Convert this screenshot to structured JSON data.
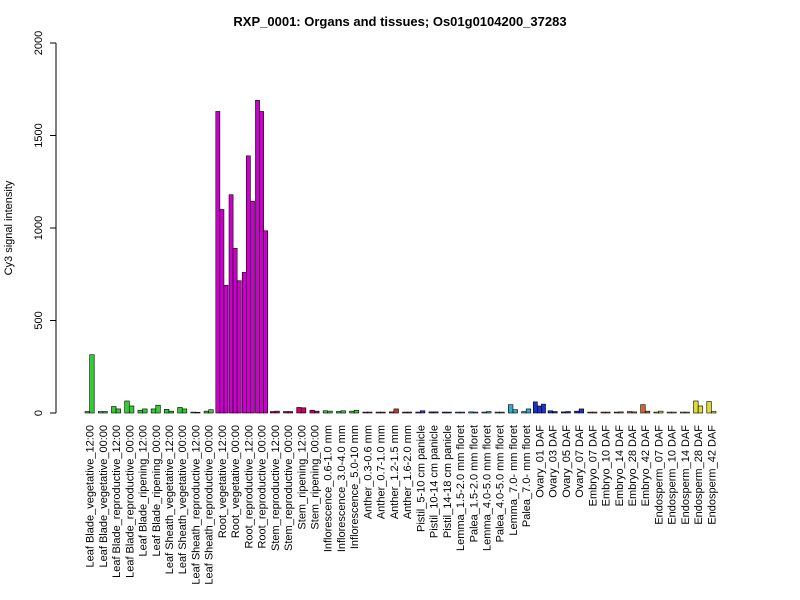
{
  "chart_data": {
    "type": "bar",
    "title": "RXP_0001: Organs and tissues; Os01g0104200_37283",
    "ylabel": "Cy3 signal intensity",
    "xlabel": "",
    "ylim": [
      0,
      2000
    ],
    "yticks": [
      0,
      500,
      1000,
      1500,
      2000
    ],
    "ytick_labels": [
      "0",
      "500",
      "1000",
      "1500",
      "2000"
    ],
    "grid": false,
    "groups": [
      {
        "label": "Leaf Blade_vegetative_12:00",
        "color": "#33cc33",
        "values": [
          8,
          315
        ]
      },
      {
        "label": "Leaf Blade_vegetative_00:00",
        "color": "#33cc33",
        "values": [
          8,
          8
        ]
      },
      {
        "label": "Leaf Blade_reproductive_12:00",
        "color": "#33cc33",
        "values": [
          35,
          22
        ]
      },
      {
        "label": "Leaf Blade_reproductive_00:00",
        "color": "#33cc33",
        "values": [
          65,
          38
        ]
      },
      {
        "label": "Leaf Blade_ripening_12:00",
        "color": "#33cc33",
        "values": [
          15,
          22
        ]
      },
      {
        "label": "Leaf Blade_ripening_00:00",
        "color": "#33cc33",
        "values": [
          22,
          42
        ]
      },
      {
        "label": "Leaf Sheath_vegetative_12:00",
        "color": "#33cc33",
        "values": [
          20,
          10
        ]
      },
      {
        "label": "Leaf Sheath_vegetative_00:00",
        "color": "#33cc33",
        "values": [
          30,
          22
        ]
      },
      {
        "label": "Leaf Sheath_reproductive_12:00",
        "color": "#33cc33",
        "values": [
          5,
          4
        ]
      },
      {
        "label": "Leaf Sheath_reproductive_00:00",
        "color": "#33cc33",
        "values": [
          10,
          18
        ]
      },
      {
        "label": "Root_vegetative_12:00",
        "color": "#cc00cc",
        "values": [
          1630,
          1100,
          690
        ]
      },
      {
        "label": "Root_vegetative_00:00",
        "color": "#cc00cc",
        "values": [
          1180,
          890,
          715
        ]
      },
      {
        "label": "Root_reproductive_12:00",
        "color": "#cc00cc",
        "values": [
          760,
          1390,
          1145
        ]
      },
      {
        "label": "Root_reproductive_00:00",
        "color": "#cc00cc",
        "values": [
          1690,
          1630,
          985
        ]
      },
      {
        "label": "Stem_reproductive_12:00",
        "color": "#cc0066",
        "values": [
          8,
          10
        ]
      },
      {
        "label": "Stem_reproductive_00:00",
        "color": "#cc0066",
        "values": [
          8,
          8
        ]
      },
      {
        "label": "Stem_ripening_12:00",
        "color": "#cc0066",
        "values": [
          30,
          28
        ]
      },
      {
        "label": "Stem_ripening_00:00",
        "color": "#cc0066",
        "values": [
          15,
          10
        ]
      },
      {
        "label": "Inflorescence_0.6-1.0 mm",
        "color": "#33cc33",
        "values": [
          12,
          10
        ]
      },
      {
        "label": "Inflorescence_3.0-4.0 mm",
        "color": "#33cc33",
        "values": [
          8,
          12
        ]
      },
      {
        "label": "Inflorescence_5.0-10 mm",
        "color": "#33cc33",
        "values": [
          10,
          15
        ]
      },
      {
        "label": "Anther_0.3-0.6 mm",
        "color": "#cc3333",
        "values": [
          5,
          5
        ]
      },
      {
        "label": "Anther_0.7-1.0 mm",
        "color": "#cc3333",
        "values": [
          5,
          5
        ]
      },
      {
        "label": "Anther_1.2-1.5 mm",
        "color": "#cc3333",
        "values": [
          6,
          22
        ]
      },
      {
        "label": "Anther_1.6-2.0 mm",
        "color": "#cc3333",
        "values": [
          5,
          5
        ]
      },
      {
        "label": "Pistil_5-10 cm panicle",
        "color": "#3333cc",
        "values": [
          5,
          12
        ]
      },
      {
        "label": "Pistil_10-14 cm panicle",
        "color": "#3333cc",
        "values": [
          6,
          6
        ]
      },
      {
        "label": "Pistil_14-18 cm panicle",
        "color": "#3333cc",
        "values": [
          5,
          5
        ]
      },
      {
        "label": "Lemma_1.5-2.0 mm floret",
        "color": "#33aacc",
        "values": [
          5,
          5
        ]
      },
      {
        "label": "Palea_1.5-2.0 mm floret",
        "color": "#33aacc",
        "values": [
          6,
          5
        ]
      },
      {
        "label": "Lemma_4.0-5.0 mm floret",
        "color": "#33aacc",
        "values": [
          5,
          8
        ]
      },
      {
        "label": "Palea_4.0-5.0 mm floret",
        "color": "#33aacc",
        "values": [
          5,
          5
        ]
      },
      {
        "label": "Lemma_7.0- mm floret",
        "color": "#33aacc",
        "values": [
          45,
          18
        ]
      },
      {
        "label": "Palea_7.0- mm floret",
        "color": "#33aacc",
        "values": [
          8,
          22
        ]
      },
      {
        "label": "Ovary_01 DAF",
        "color": "#1a33cc",
        "values": [
          60,
          38,
          48
        ]
      },
      {
        "label": "Ovary_03 DAF",
        "color": "#1a33cc",
        "values": [
          12,
          8
        ]
      },
      {
        "label": "Ovary_05 DAF",
        "color": "#1a33cc",
        "values": [
          6,
          8
        ]
      },
      {
        "label": "Ovary_07 DAF",
        "color": "#1a33cc",
        "values": [
          10,
          22
        ]
      },
      {
        "label": "Embryo_07 DAF",
        "color": "#cc6633",
        "values": [
          5,
          5
        ]
      },
      {
        "label": "Embryo_10 DAF",
        "color": "#cc6633",
        "values": [
          5,
          5
        ]
      },
      {
        "label": "Embryo_14 DAF",
        "color": "#cc6633",
        "values": [
          5,
          6
        ]
      },
      {
        "label": "Embryo_28 DAF",
        "color": "#cc6633",
        "values": [
          8,
          6
        ]
      },
      {
        "label": "Embryo_42 DAF",
        "color": "#cc6633",
        "values": [
          45,
          10
        ]
      },
      {
        "label": "Endosperm_07 DAF",
        "color": "#cccc33",
        "values": [
          5,
          10
        ]
      },
      {
        "label": "Endosperm_10 DAF",
        "color": "#cccc33",
        "values": [
          5,
          5
        ]
      },
      {
        "label": "Endosperm_14 DAF",
        "color": "#cccc33",
        "values": [
          5,
          5
        ]
      },
      {
        "label": "Endosperm_28 DAF",
        "color": "#dddd33",
        "values": [
          65,
          38
        ]
      },
      {
        "label": "Endosperm_42 DAF",
        "color": "#dddd33",
        "values": [
          62,
          8
        ]
      }
    ]
  }
}
